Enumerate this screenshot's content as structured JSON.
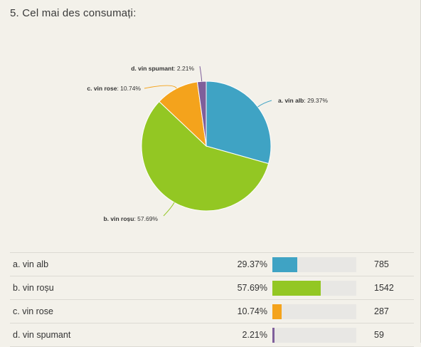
{
  "question": {
    "title": "5. Cel mai des consumați:"
  },
  "chart_data": {
    "type": "pie",
    "title": "5. Cel mai des consumați:",
    "slices": [
      {
        "label": "a. vin alb",
        "percent": 29.37,
        "count": 785,
        "color": "#3fa3c4",
        "pct_label": "29.37%"
      },
      {
        "label": "b. vin roșu",
        "percent": 57.69,
        "count": 1542,
        "color": "#93c723",
        "pct_label": "57.69%"
      },
      {
        "label": "c. vin rose",
        "percent": 10.74,
        "count": 287,
        "color": "#f4a31c",
        "pct_label": "10.74%"
      },
      {
        "label": "d. vin spumant",
        "percent": 2.21,
        "count": 59,
        "color": "#7f5f9b",
        "pct_label": "2.21%"
      }
    ]
  },
  "table": {
    "rows": [
      {
        "label": "a. vin alb",
        "percent_text": "29.37%",
        "percent": 29.37,
        "count": "785",
        "color": "#3fa3c4"
      },
      {
        "label": "b. vin roșu",
        "percent_text": "57.69%",
        "percent": 57.69,
        "count": "1542",
        "color": "#93c723"
      },
      {
        "label": "c. vin rose",
        "percent_text": "10.74%",
        "percent": 10.74,
        "count": "287",
        "color": "#f4a31c"
      },
      {
        "label": "d. vin spumant",
        "percent_text": "2.21%",
        "percent": 2.21,
        "count": "59",
        "color": "#7f5f9b"
      }
    ]
  }
}
